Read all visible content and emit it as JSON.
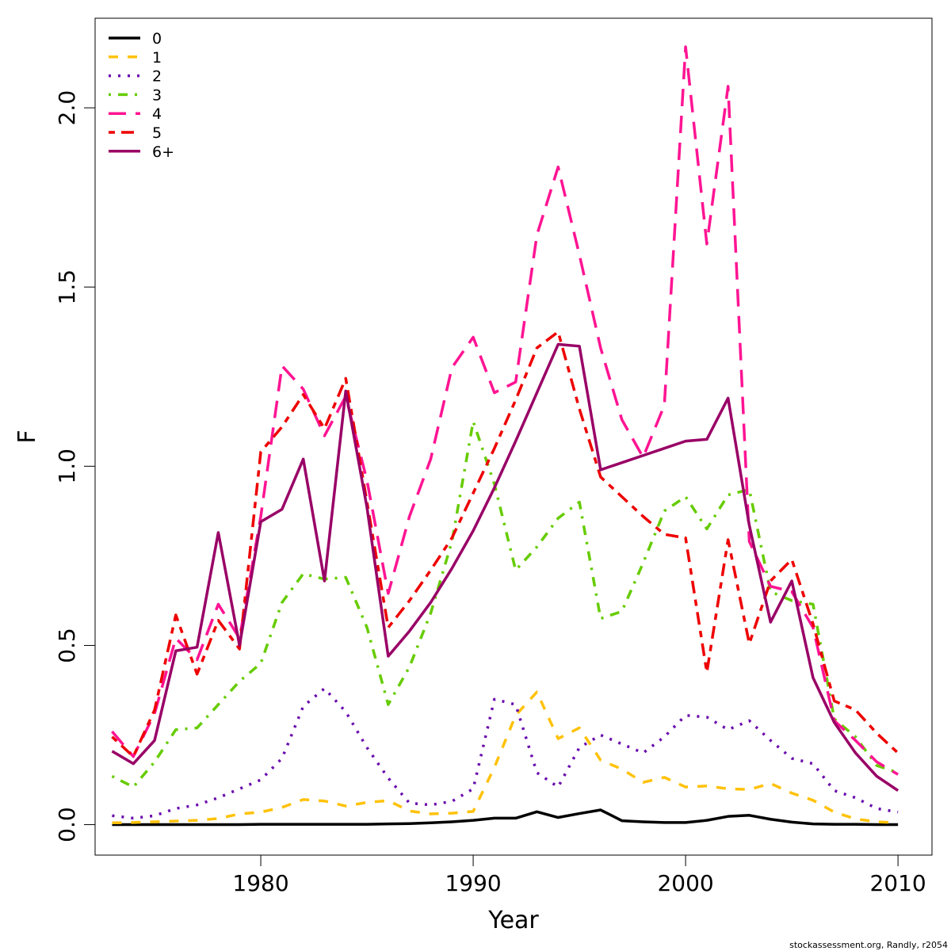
{
  "chart_data": {
    "type": "line",
    "xlabel": "Year",
    "ylabel": "F",
    "xlim": [
      1972.2,
      2011.6
    ],
    "ylim": [
      -0.085,
      2.25
    ],
    "x_ticks": [
      1980,
      1990,
      2000,
      2010
    ],
    "y_ticks": [
      0.0,
      0.5,
      1.0,
      1.5,
      2.0
    ],
    "x_tick_labels": [
      "1980",
      "1990",
      "2000",
      "2010"
    ],
    "y_tick_labels": [
      "0.0",
      "0.5",
      "1.0",
      "1.5",
      "2.0"
    ],
    "grid": false,
    "legend_position": "top-left",
    "x": [
      1973,
      1974,
      1975,
      1976,
      1977,
      1978,
      1979,
      1980,
      1981,
      1982,
      1983,
      1984,
      1985,
      1986,
      1987,
      1988,
      1989,
      1990,
      1991,
      1992,
      1993,
      1994,
      1995,
      1996,
      1997,
      1998,
      1999,
      2000,
      2001,
      2002,
      2003,
      2004,
      2005,
      2006,
      2007,
      2008,
      2009,
      2010
    ],
    "series": [
      {
        "name": "0",
        "color": "#000000",
        "dash": "solid",
        "values": [
          0.0,
          0.0,
          0.0,
          0.0,
          0.0,
          0.0,
          0.0,
          0.001,
          0.001,
          0.001,
          0.001,
          0.001,
          0.001,
          0.002,
          0.003,
          0.005,
          0.008,
          0.012,
          0.018,
          0.018,
          0.036,
          0.02,
          0.031,
          0.041,
          0.011,
          0.008,
          0.006,
          0.006,
          0.012,
          0.023,
          0.026,
          0.015,
          0.007,
          0.002,
          0.001,
          0.001,
          0.0,
          0.0
        ]
      },
      {
        "name": "1",
        "color": "#ffc20a",
        "dash": "dashed",
        "values": [
          0.005,
          0.006,
          0.008,
          0.01,
          0.012,
          0.017,
          0.03,
          0.035,
          0.048,
          0.07,
          0.066,
          0.052,
          0.062,
          0.067,
          0.038,
          0.03,
          0.032,
          0.037,
          0.16,
          0.305,
          0.37,
          0.24,
          0.27,
          0.18,
          0.155,
          0.118,
          0.132,
          0.105,
          0.108,
          0.1,
          0.098,
          0.115,
          0.088,
          0.068,
          0.035,
          0.016,
          0.008,
          0.005
        ]
      },
      {
        "name": "2",
        "color": "#6a0dad",
        "dash": "dotted",
        "values": [
          0.025,
          0.018,
          0.025,
          0.045,
          0.055,
          0.075,
          0.1,
          0.125,
          0.185,
          0.33,
          0.38,
          0.315,
          0.215,
          0.13,
          0.06,
          0.055,
          0.065,
          0.1,
          0.35,
          0.335,
          0.145,
          0.105,
          0.215,
          0.25,
          0.225,
          0.2,
          0.245,
          0.305,
          0.3,
          0.265,
          0.29,
          0.235,
          0.185,
          0.17,
          0.095,
          0.075,
          0.045,
          0.035
        ]
      },
      {
        "name": "3",
        "color": "#66cc00",
        "dash": "dashdot",
        "values": [
          0.135,
          0.105,
          0.175,
          0.265,
          0.27,
          0.335,
          0.4,
          0.45,
          0.62,
          0.7,
          0.685,
          0.69,
          0.55,
          0.335,
          0.44,
          0.59,
          0.79,
          1.125,
          0.95,
          0.71,
          0.775,
          0.855,
          0.9,
          0.575,
          0.595,
          0.73,
          0.875,
          0.915,
          0.825,
          0.92,
          0.935,
          0.65,
          0.625,
          0.615,
          0.295,
          0.245,
          0.165,
          0.145
        ]
      },
      {
        "name": "4",
        "color": "#ff1493",
        "dash": "longdash",
        "values": [
          0.26,
          0.19,
          0.31,
          0.52,
          0.46,
          0.615,
          0.52,
          0.86,
          1.28,
          1.215,
          1.085,
          1.195,
          0.96,
          0.645,
          0.86,
          1.02,
          1.275,
          1.36,
          1.205,
          1.235,
          1.645,
          1.835,
          1.59,
          1.33,
          1.13,
          1.025,
          1.17,
          2.17,
          1.62,
          2.06,
          0.79,
          0.665,
          0.65,
          0.55,
          0.29,
          0.235,
          0.175,
          0.14
        ]
      },
      {
        "name": "5",
        "color": "#ee0000",
        "dash": "twodash",
        "values": [
          0.245,
          0.19,
          0.32,
          0.585,
          0.42,
          0.57,
          0.49,
          1.04,
          1.11,
          1.2,
          1.105,
          1.245,
          0.9,
          0.55,
          0.625,
          0.71,
          0.8,
          0.925,
          1.05,
          1.185,
          1.33,
          1.375,
          1.16,
          0.97,
          0.915,
          0.86,
          0.81,
          0.8,
          0.425,
          0.795,
          0.505,
          0.68,
          0.74,
          0.56,
          0.345,
          0.32,
          0.255,
          0.2
        ]
      },
      {
        "name": "6+",
        "color": "#990066",
        "dash": "solid",
        "values": [
          0.205,
          0.17,
          0.235,
          0.485,
          0.495,
          0.815,
          0.5,
          0.845,
          0.88,
          1.02,
          0.68,
          1.21,
          0.885,
          0.47,
          0.54,
          0.62,
          0.715,
          0.82,
          0.94,
          1.07,
          1.205,
          1.34,
          1.335,
          0.99,
          1.01,
          1.03,
          1.05,
          1.07,
          1.075,
          1.19,
          0.835,
          0.565,
          0.68,
          0.41,
          0.285,
          0.2,
          0.135,
          0.095
        ]
      }
    ]
  },
  "credit": "stockassessment.org, Randly, r2054"
}
